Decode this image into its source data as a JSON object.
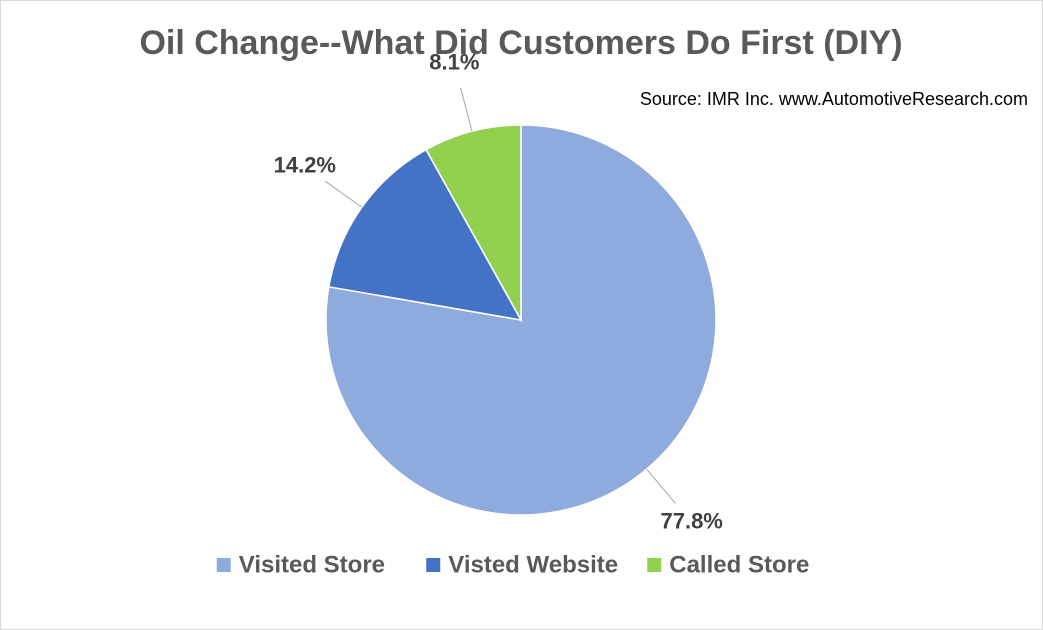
{
  "chart_data": {
    "type": "pie",
    "title": "Oil Change--What Did Customers Do First (DIY)",
    "subtitle": "Source: IMR Inc. www.AutomotiveResearch.com",
    "categories": [
      "Visited Store",
      "Visted Website",
      "Called Store"
    ],
    "values": [
      77.8,
      14.2,
      8.1
    ],
    "value_labels": [
      "77.8%",
      "14.2%",
      "8.1%"
    ],
    "colors": [
      "#8faadc",
      "#4472c4",
      "#92d050"
    ],
    "legend": "bottom"
  }
}
